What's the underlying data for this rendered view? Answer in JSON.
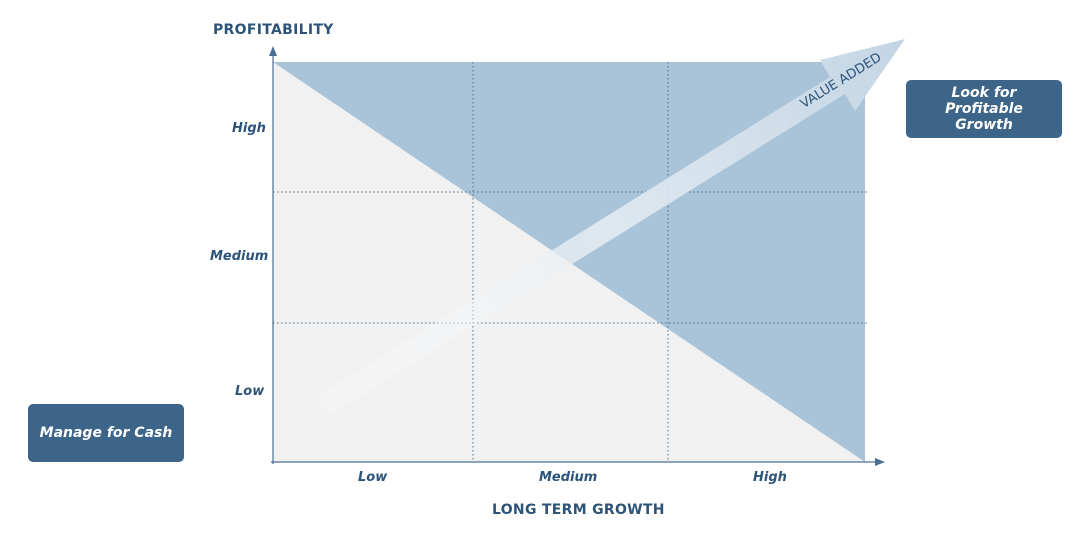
{
  "y_axis": {
    "title": "PROFITABILITY",
    "ticks": [
      "High",
      "Medium",
      "Low"
    ]
  },
  "x_axis": {
    "title": "LONG TERM GROWTH",
    "ticks": [
      "Low",
      "Medium",
      "High"
    ]
  },
  "arrow_label": "VALUE ADDED",
  "top_right_box": {
    "lines": [
      "Look for",
      "Profitable",
      "Growth"
    ]
  },
  "bottom_left_box": {
    "label": "Manage for Cash"
  },
  "colors": {
    "primary": "#3d6589",
    "label": "#2d5478",
    "blue_region": "#a9c3d8",
    "grey_region": "#f1f1f1",
    "grid_line": "#4a6f92",
    "arrow_light": "#dfe7ef"
  }
}
